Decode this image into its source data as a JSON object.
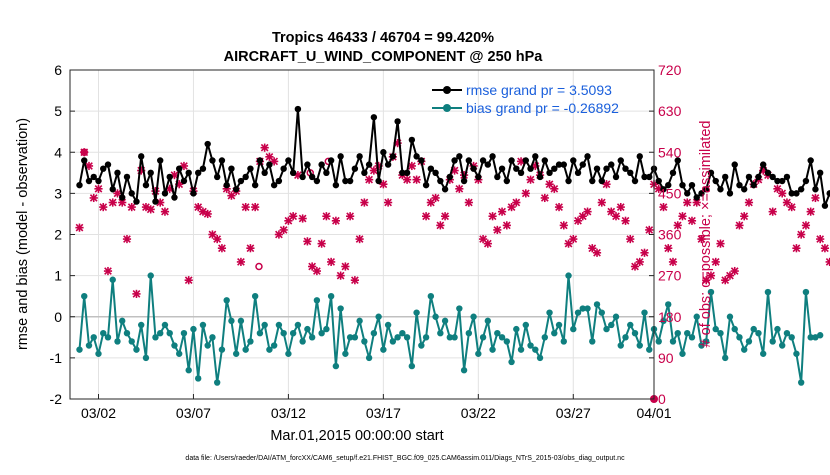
{
  "chart_data": {
    "type": "line",
    "title_line1": "Tropics 46433 / 46704 = 99.420%",
    "title_line2": "AIRCRAFT_U_WIND_COMPONENT @ 250 hPa",
    "xlabel": "Mar.01,2015 00:00:00 start",
    "ylabel_left": "rmse and bias (model - observation)",
    "ylabel_right": "# of obs: o=possible; ×=assimilated",
    "footnote": "data file: /Users/raeder/DAI/ATM_forcXX/CAM6_setup/f.e21.FHIST_BGC.f09_025.CAM6assim.011/Diags_NTrS_2015-03/obs_diag_output.nc",
    "ylim_left": [
      -2,
      6
    ],
    "ylim_right": [
      0,
      720
    ],
    "xlim_days": [
      0.5,
      31.25
    ],
    "left_ticks": [
      "-2",
      "-1",
      "0",
      "1",
      "2",
      "3",
      "4",
      "5",
      "6"
    ],
    "right_ticks": [
      "0",
      "90",
      "180",
      "270",
      "360",
      "450",
      "540",
      "630",
      "720"
    ],
    "x_ticks": [
      {
        "day": 2,
        "label": "03/02"
      },
      {
        "day": 7,
        "label": "03/07"
      },
      {
        "day": 12,
        "label": "03/12"
      },
      {
        "day": 17,
        "label": "03/17"
      },
      {
        "day": 22,
        "label": "03/22"
      },
      {
        "day": 27,
        "label": "03/27"
      },
      {
        "day": 32,
        "label": "04/01"
      }
    ],
    "x_start_day": 1.0,
    "x_step_days": 0.25,
    "legend": {
      "rmse_label": "rmse grand pr = 3.5093",
      "bias_label": "bias grand pr = -0.26892",
      "placement": "top-right"
    },
    "colors": {
      "rmse": "#000000",
      "bias": "#0f7f7f",
      "obs": "#c8004a",
      "legend_text": "#1a5fdc",
      "zero_line": "#c0c0c0"
    },
    "series": [
      {
        "name": "rmse",
        "values": [
          3.2,
          3.8,
          3.3,
          3.4,
          3.3,
          3.6,
          3.7,
          3.1,
          3.5,
          2.9,
          3.4,
          3.0,
          2.8,
          3.9,
          3.2,
          3.5,
          2.8,
          3.8,
          3.0,
          3.4,
          2.9,
          3.6,
          3.3,
          3.5,
          3.0,
          3.5,
          3.6,
          4.2,
          3.8,
          3.4,
          3.8,
          3.2,
          3.6,
          3.1,
          3.3,
          3.4,
          3.6,
          3.2,
          3.8,
          3.5,
          3.7,
          3.2,
          3.3,
          3.6,
          3.8,
          3.5,
          5.05,
          3.4,
          3.7,
          3.4,
          3.3,
          3.7,
          3.5,
          3.8,
          3.2,
          3.9,
          3.3,
          3.3,
          3.6,
          3.9,
          3.5,
          3.7,
          4.85,
          3.3,
          4.0,
          3.7,
          3.9,
          4.75,
          3.5,
          3.5,
          4.3,
          3.9,
          3.8,
          3.2,
          3.6,
          3.5,
          3.3,
          3.1,
          3.4,
          3.8,
          3.9,
          3.3,
          3.8,
          3.6,
          3.4,
          3.8,
          3.7,
          3.9,
          3.4,
          3.6,
          3.3,
          3.8,
          3.6,
          3.5,
          3.8,
          3.6,
          3.9,
          3.4,
          3.8,
          3.5,
          3.6,
          3.7,
          3.7,
          3.3,
          3.8,
          3.5,
          3.7,
          3.9,
          3.3,
          3.6,
          3.3,
          3.6,
          3.7,
          3.4,
          3.8,
          3.6,
          3.5,
          3.3,
          3.9,
          3.4,
          3.4,
          3.6,
          3.3,
          3.1,
          3.2,
          3.5,
          3.8,
          3.2,
          3.0,
          3.2,
          2.9,
          3.0,
          3.1,
          3.5,
          3.3,
          3.1,
          3.4,
          3.0,
          3.7,
          3.2,
          3.1,
          3.4,
          3.2,
          3.4,
          3.7,
          3.5,
          3.4,
          3.3,
          3.3,
          3.4,
          3.0,
          3.0,
          3.1,
          3.3,
          3.8,
          3.1,
          3.5,
          2.7,
          3.0,
          3.3,
          3.0,
          3.1,
          2.75
        ],
        "color": "#000000"
      },
      {
        "name": "bias",
        "values": [
          -0.8,
          0.5,
          -0.7,
          -0.5,
          -0.9,
          -0.4,
          -0.5,
          0.9,
          -0.6,
          -0.1,
          -0.4,
          -0.6,
          -0.8,
          -0.2,
          -1.0,
          1.0,
          -0.5,
          -0.4,
          -0.2,
          -0.4,
          -0.7,
          -0.9,
          -0.4,
          -1.3,
          -0.3,
          -1.5,
          -0.2,
          -0.7,
          -0.5,
          -1.6,
          -0.8,
          0.4,
          -0.1,
          -0.9,
          -0.1,
          -0.8,
          -0.6,
          0.5,
          -0.4,
          -0.2,
          -0.8,
          -0.7,
          -0.2,
          -0.4,
          -0.9,
          -0.4,
          -0.2,
          -0.6,
          -0.3,
          -0.5,
          0.4,
          -0.4,
          -0.3,
          0.5,
          -1.2,
          0.2,
          -0.9,
          -0.5,
          -0.5,
          -0.1,
          -0.6,
          -1.0,
          -0.4,
          0.0,
          -0.8,
          -0.2,
          -0.6,
          -0.5,
          -0.4,
          -0.5,
          -1.2,
          0.1,
          -0.7,
          -0.5,
          0.5,
          0.0,
          -0.4,
          -0.1,
          -0.5,
          -0.5,
          0.2,
          -1.3,
          -0.4,
          0.0,
          -0.9,
          -0.5,
          -0.1,
          -0.8,
          -0.4,
          -0.5,
          -0.6,
          -1.1,
          -0.3,
          -0.8,
          -0.2,
          -0.7,
          -0.8,
          -1.0,
          -0.5,
          0.1,
          -0.4,
          -0.2,
          -0.6,
          1.0,
          -0.3,
          0.1,
          0.2,
          0.2,
          -0.6,
          0.3,
          0.1,
          -0.3,
          -0.2,
          0.0,
          -0.7,
          -0.5,
          -0.2,
          -0.4,
          -0.7,
          0.1,
          -0.8,
          -0.3,
          -0.6,
          -0.1,
          0.3,
          -0.6,
          -0.4,
          -0.9,
          -0.4,
          -0.5,
          0.0,
          -0.7,
          -0.6,
          0.6,
          -0.3,
          -0.4,
          -1.0,
          0.0,
          -0.3,
          -0.5,
          -0.8,
          -0.6,
          -0.3,
          -0.4,
          -0.9,
          0.6,
          -0.6,
          -0.3,
          -0.7,
          -0.4,
          -0.5,
          -0.9,
          -1.6,
          0.6,
          -0.5,
          -0.5,
          -0.45
        ],
        "color": "#0f7f7f"
      },
      {
        "name": "obs_assimilated",
        "values": [
          375,
          540,
          510,
          440,
          460,
          420,
          280,
          430,
          450,
          430,
          350,
          420,
          230,
          500,
          420,
          415,
          455,
          430,
          410,
          460,
          490,
          470,
          510,
          260,
          455,
          420,
          410,
          405,
          360,
          350,
          330,
          460,
          445,
          455,
          300,
          420,
          330,
          420,
          520,
          550,
          530,
          520,
          360,
          370,
          390,
          400,
          490,
          395,
          345,
          290,
          280,
          340,
          400,
          300,
          390,
          270,
          290,
          400,
          260,
          350,
          430,
          480,
          500,
          510,
          470,
          430,
          530,
          560,
          490,
          480,
          510,
          480,
          520,
          400,
          430,
          440,
          380,
          400,
          480,
          500,
          460,
          490,
          430,
          510,
          480,
          350,
          340,
          400,
          370,
          410,
          380,
          420,
          430,
          520,
          450,
          480,
          510,
          490,
          440,
          470,
          460,
          420,
          380,
          340,
          350,
          390,
          400,
          410,
          330,
          320,
          430,
          470,
          410,
          400,
          420,
          390,
          350,
          290,
          300,
          320,
          370,
          470,
          460,
          420,
          330,
          300,
          380,
          400,
          430,
          390,
          430,
          350,
          260,
          270,
          300,
          340,
          260,
          270,
          280,
          380,
          400,
          430,
          470,
          480,
          500,
          490,
          410,
          460,
          450,
          430,
          420,
          330,
          360,
          380,
          410,
          440,
          350,
          330,
          300,
          360
        ],
        "color": "#c8004a"
      }
    ],
    "obs_possible_extra": [
      {
        "day": 1.25,
        "value": 540
      },
      {
        "day": 10.45,
        "value": 290
      },
      {
        "day": 13.15,
        "value": 495
      },
      {
        "day": 14.1,
        "value": 520
      }
    ]
  }
}
